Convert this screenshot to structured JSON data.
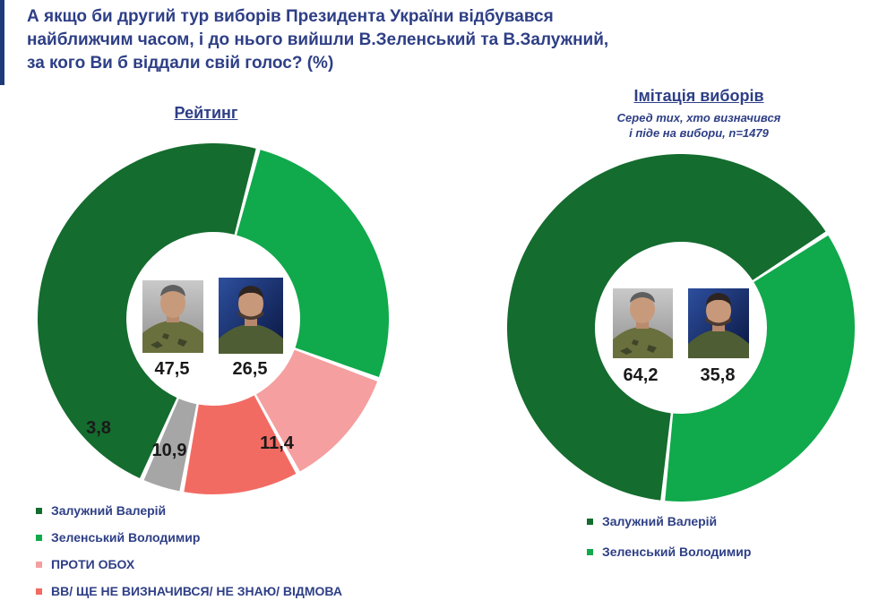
{
  "title": {
    "line1": "А якщо би другий тур виборів Президента України відбувався",
    "line2": "найближчим часом, і до нього вийшли В.Зеленський та В.Залужний,",
    "line3": "за кого Ви б віддали свій голос? (%)"
  },
  "colors": {
    "zaluzhnyi": "#146c2e",
    "zelenskyi": "#10a94b",
    "against_both": "#f59fa0",
    "undecided": "#f26b63",
    "hard_to_say": "#a6a6a6",
    "text": "#2e3f86"
  },
  "chart_data": [
    {
      "type": "pie",
      "donut": true,
      "title": "Рейтинг",
      "slices": [
        {
          "label": "Залужний Валерій",
          "value": 47.5,
          "color": "#146c2e"
        },
        {
          "label": "Зеленський Володимир",
          "value": 26.5,
          "color": "#10a94b"
        },
        {
          "label": "ПРОТИ ОБОХ",
          "value": 11.4,
          "color": "#f59fa0"
        },
        {
          "label": "ВВ/ ЩЕ НЕ ВИЗНАЧИВСЯ/ НЕ ЗНАЮ/ ВІДМОВА",
          "value": 10.9,
          "color": "#f26b63"
        },
        {
          "label": "",
          "value": 3.8,
          "color": "#a6a6a6"
        }
      ],
      "center_values": [
        "47,5",
        "26,5"
      ],
      "slice_labels": [
        "11,4",
        "10,9",
        "3,8"
      ],
      "legend": [
        "Залужний Валерій",
        "Зеленський Володимир",
        "ПРОТИ ОБОХ",
        "ВВ/ ЩЕ НЕ ВИЗНАЧИВСЯ/ НЕ ЗНАЮ/ ВІДМОВА"
      ]
    },
    {
      "type": "pie",
      "donut": true,
      "title": "Імітація виборів",
      "subtitle": [
        "Серед тих, хто визначився",
        "і піде на вибори, n=1479"
      ],
      "slices": [
        {
          "label": "Залужний Валерій",
          "value": 64.2,
          "color": "#146c2e"
        },
        {
          "label": "Зеленський Володимир",
          "value": 35.8,
          "color": "#10a94b"
        }
      ],
      "center_values": [
        "64,2",
        "35,8"
      ],
      "legend": [
        "Залужний Валерій",
        "Зеленський Володимир"
      ]
    }
  ]
}
